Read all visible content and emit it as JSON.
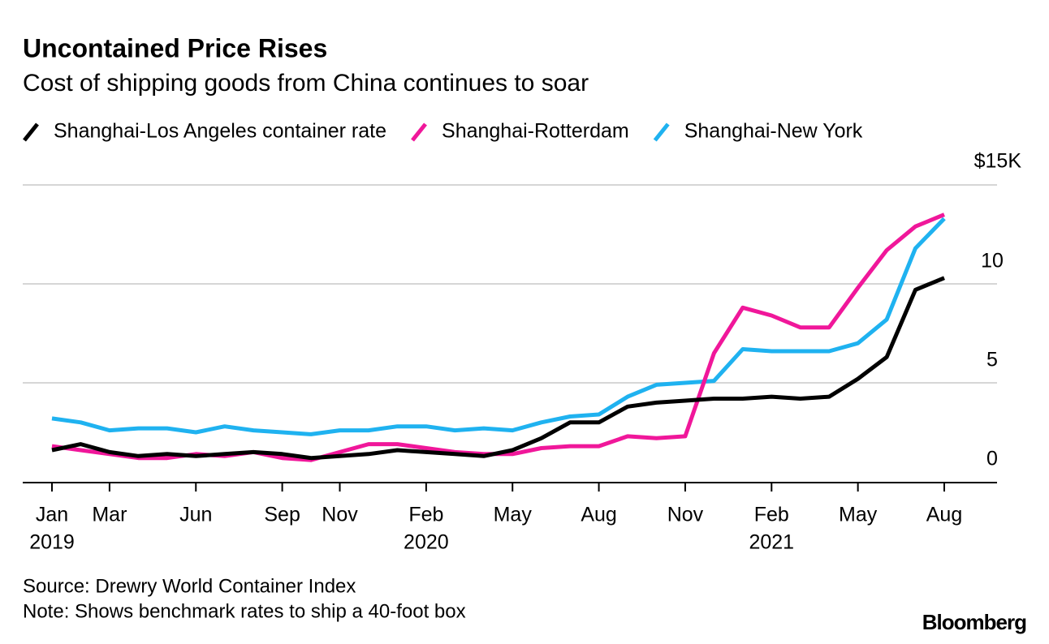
{
  "chart_data": {
    "type": "line",
    "title": "Uncontained Price Rises",
    "subtitle": "Cost of shipping goods from China continues to soar",
    "x": [
      "2019-01",
      "2019-02",
      "2019-03",
      "2019-04",
      "2019-05",
      "2019-06",
      "2019-07",
      "2019-08",
      "2019-09",
      "2019-10",
      "2019-11",
      "2019-12",
      "2020-01",
      "2020-02",
      "2020-03",
      "2020-04",
      "2020-05",
      "2020-06",
      "2020-07",
      "2020-08",
      "2020-09",
      "2020-10",
      "2020-11",
      "2020-12",
      "2021-01",
      "2021-02",
      "2021-03",
      "2021-04",
      "2021-05",
      "2021-06",
      "2021-07",
      "2021-08"
    ],
    "xlim": [
      "2019-01",
      "2021-08"
    ],
    "xticks": [
      {
        "value": "2019-01",
        "label": "Jan"
      },
      {
        "value": "2019-03",
        "label": "Mar"
      },
      {
        "value": "2019-06",
        "label": "Jun"
      },
      {
        "value": "2019-09",
        "label": "Sep"
      },
      {
        "value": "2019-11",
        "label": "Nov"
      },
      {
        "value": "2020-02",
        "label": "Feb"
      },
      {
        "value": "2020-05",
        "label": "May"
      },
      {
        "value": "2020-08",
        "label": "Aug"
      },
      {
        "value": "2020-11",
        "label": "Nov"
      },
      {
        "value": "2021-02",
        "label": "Feb"
      },
      {
        "value": "2021-05",
        "label": "May"
      },
      {
        "value": "2021-08",
        "label": "Aug"
      }
    ],
    "x_year_labels": [
      {
        "value": "2019-01",
        "label": "2019"
      },
      {
        "value": "2020-02",
        "label": "2020"
      },
      {
        "value": "2021-02",
        "label": "2021"
      }
    ],
    "ylim": [
      0,
      15
    ],
    "yticks": [
      0,
      5,
      10,
      {
        "value": 15,
        "label": "$15K"
      }
    ],
    "grid": true,
    "series": [
      {
        "name": "Shanghai-Los Angeles container rate",
        "color": "#000000",
        "values": [
          1.6,
          1.9,
          1.5,
          1.3,
          1.4,
          1.3,
          1.4,
          1.5,
          1.4,
          1.2,
          1.3,
          1.4,
          1.6,
          1.5,
          1.4,
          1.3,
          1.6,
          2.2,
          3.0,
          3.0,
          3.8,
          4.0,
          4.1,
          4.2,
          4.2,
          4.3,
          4.2,
          4.3,
          5.2,
          6.3,
          9.7,
          10.3
        ]
      },
      {
        "name": "Shanghai-Rotterdam",
        "color": "#f0179a",
        "values": [
          1.8,
          1.6,
          1.4,
          1.2,
          1.2,
          1.4,
          1.3,
          1.5,
          1.2,
          1.1,
          1.5,
          1.9,
          1.9,
          1.7,
          1.5,
          1.4,
          1.4,
          1.7,
          1.8,
          1.8,
          2.3,
          2.2,
          2.3,
          6.5,
          8.8,
          8.4,
          7.8,
          7.8,
          9.8,
          11.7,
          12.9,
          13.5
        ]
      },
      {
        "name": "Shanghai-New York",
        "color": "#1fb2f0",
        "values": [
          3.2,
          3.0,
          2.6,
          2.7,
          2.7,
          2.5,
          2.8,
          2.6,
          2.5,
          2.4,
          2.6,
          2.6,
          2.8,
          2.8,
          2.6,
          2.7,
          2.6,
          3.0,
          3.3,
          3.4,
          4.3,
          4.9,
          5.0,
          5.1,
          6.7,
          6.6,
          6.6,
          6.6,
          7.0,
          8.2,
          11.8,
          13.3
        ]
      }
    ],
    "source": "Source: Drewry World Container Index",
    "note": "Note: Shows benchmark rates to ship a 40-foot box",
    "brand": "Bloomberg"
  }
}
